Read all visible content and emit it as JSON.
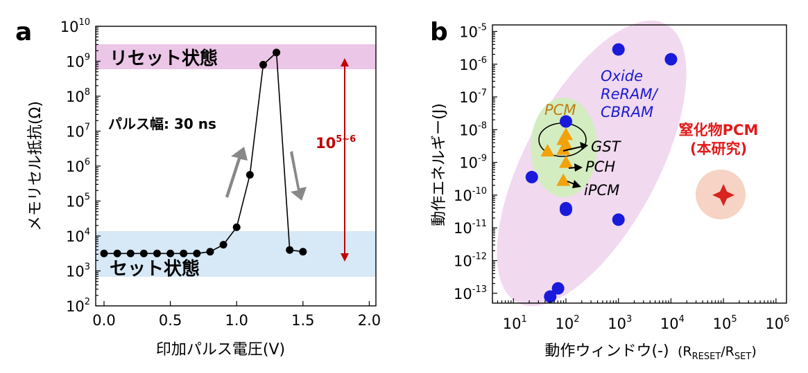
{
  "chart_data": [
    {
      "panel_label": "a",
      "type": "line",
      "title": "",
      "xlabel": "印加パルス電圧(V)",
      "ylabel": "メモリセル抵抗(Ω)",
      "xlim": [
        0.0,
        2.05
      ],
      "ylim_log10": [
        2,
        10
      ],
      "x_ticks": [
        "0.0",
        "0.5",
        "1.0",
        "1.5",
        "2.0"
      ],
      "y_ticks": [
        {
          "base": "10",
          "exp": "2"
        },
        {
          "base": "10",
          "exp": "3"
        },
        {
          "base": "10",
          "exp": "4"
        },
        {
          "base": "10",
          "exp": "5"
        },
        {
          "base": "10",
          "exp": "6"
        },
        {
          "base": "10",
          "exp": "7"
        },
        {
          "base": "10",
          "exp": "8"
        },
        {
          "base": "10",
          "exp": "9"
        },
        {
          "base": "10",
          "exp": "10"
        }
      ],
      "series": [
        {
          "name": "resistance",
          "x": [
            0.0,
            0.1,
            0.2,
            0.3,
            0.4,
            0.5,
            0.6,
            0.7,
            0.8,
            0.9,
            1.0,
            1.1,
            1.2,
            1.3,
            1.4,
            1.5
          ],
          "log10_y": [
            3.5,
            3.5,
            3.5,
            3.5,
            3.5,
            3.5,
            3.5,
            3.5,
            3.55,
            3.75,
            4.25,
            5.75,
            8.9,
            9.25,
            3.6,
            3.55
          ]
        }
      ],
      "bands": [
        {
          "label": "リセット状態",
          "log10_range": [
            8.85,
            9.6
          ],
          "color": "#ebc6e7"
        },
        {
          "label": "セット状態",
          "log10_range": [
            2.7,
            4.0
          ],
          "color": "#d7e8f6"
        }
      ],
      "annotations": {
        "pulse_width": "パルス幅: 30 ns",
        "ratio_base": "10",
        "ratio_exp": "5~6"
      }
    },
    {
      "panel_label": "b",
      "type": "scatter",
      "title": "",
      "xlabel": "動作ウィンドウ(-)",
      "xlabel_extra": {
        "r1": "R",
        "s1": "RESET",
        "sep": "/R",
        "s2": "SET",
        "close": ")",
        "open": "("
      },
      "ylabel": "動作エネルギー(J)",
      "xlim_log10": [
        0.6,
        6.2
      ],
      "ylim_log10": [
        -13.3,
        -4.8
      ],
      "x_ticks": [
        {
          "base": "10",
          "exp": "1"
        },
        {
          "base": "10",
          "exp": "2"
        },
        {
          "base": "10",
          "exp": "3"
        },
        {
          "base": "10",
          "exp": "4"
        },
        {
          "base": "10",
          "exp": "5"
        },
        {
          "base": "10",
          "exp": "6"
        }
      ],
      "y_ticks": [
        {
          "base": "10",
          "exp": "-5"
        },
        {
          "base": "10",
          "exp": "-6"
        },
        {
          "base": "10",
          "exp": "-7"
        },
        {
          "base": "10",
          "exp": "-8"
        },
        {
          "base": "10",
          "exp": "-9"
        },
        {
          "base": "10",
          "exp": "-10"
        },
        {
          "base": "10",
          "exp": "-11"
        },
        {
          "base": "10",
          "exp": "-12"
        },
        {
          "base": "10",
          "exp": "-13"
        }
      ],
      "series": [
        {
          "name": "Oxide ReRAM/CBRAM",
          "marker": "circle",
          "color": "#1a1adb",
          "log10_x": [
            3.0,
            4.0,
            1.35,
            2.0,
            2.0,
            2.0,
            3.0,
            1.7,
            1.85
          ],
          "log10_y": [
            -5.55,
            -5.85,
            -9.45,
            -7.75,
            -10.45,
            -10.4,
            -10.75,
            -13.1,
            -12.85
          ]
        },
        {
          "name": "PCM",
          "marker": "triangle",
          "color": "#f2a20a",
          "log10_x": [
            1.95,
            2.0,
            1.65,
            1.95,
            2.0,
            2.0,
            1.95
          ],
          "log10_y": [
            -8.3,
            -8.15,
            -8.65,
            -8.6,
            -8.45,
            -9.0,
            -9.55
          ]
        },
        {
          "name": "窒化物PCM (本研究)",
          "marker": "star4",
          "color": "#d8231e",
          "log10_x": [
            5.0
          ],
          "log10_y": [
            -10.0
          ]
        }
      ],
      "labels": {
        "oxide": [
          "Oxide",
          "ReRAM/",
          "CBRAM"
        ],
        "pcm": "PCM",
        "gst": "GST",
        "pch": "PCH",
        "ipcm": "iPCM",
        "nitride": [
          "窒化物PCM",
          "(本研究)"
        ]
      },
      "colors": {
        "oxide_region": "#f1d9ef",
        "pcm_region": "#d3edc0",
        "nitride_region": "#f6d3c5",
        "oxide_text": "#1a1ad0",
        "pcm_text": "#c07a10",
        "nitride_text": "#e21a1a"
      }
    }
  ]
}
